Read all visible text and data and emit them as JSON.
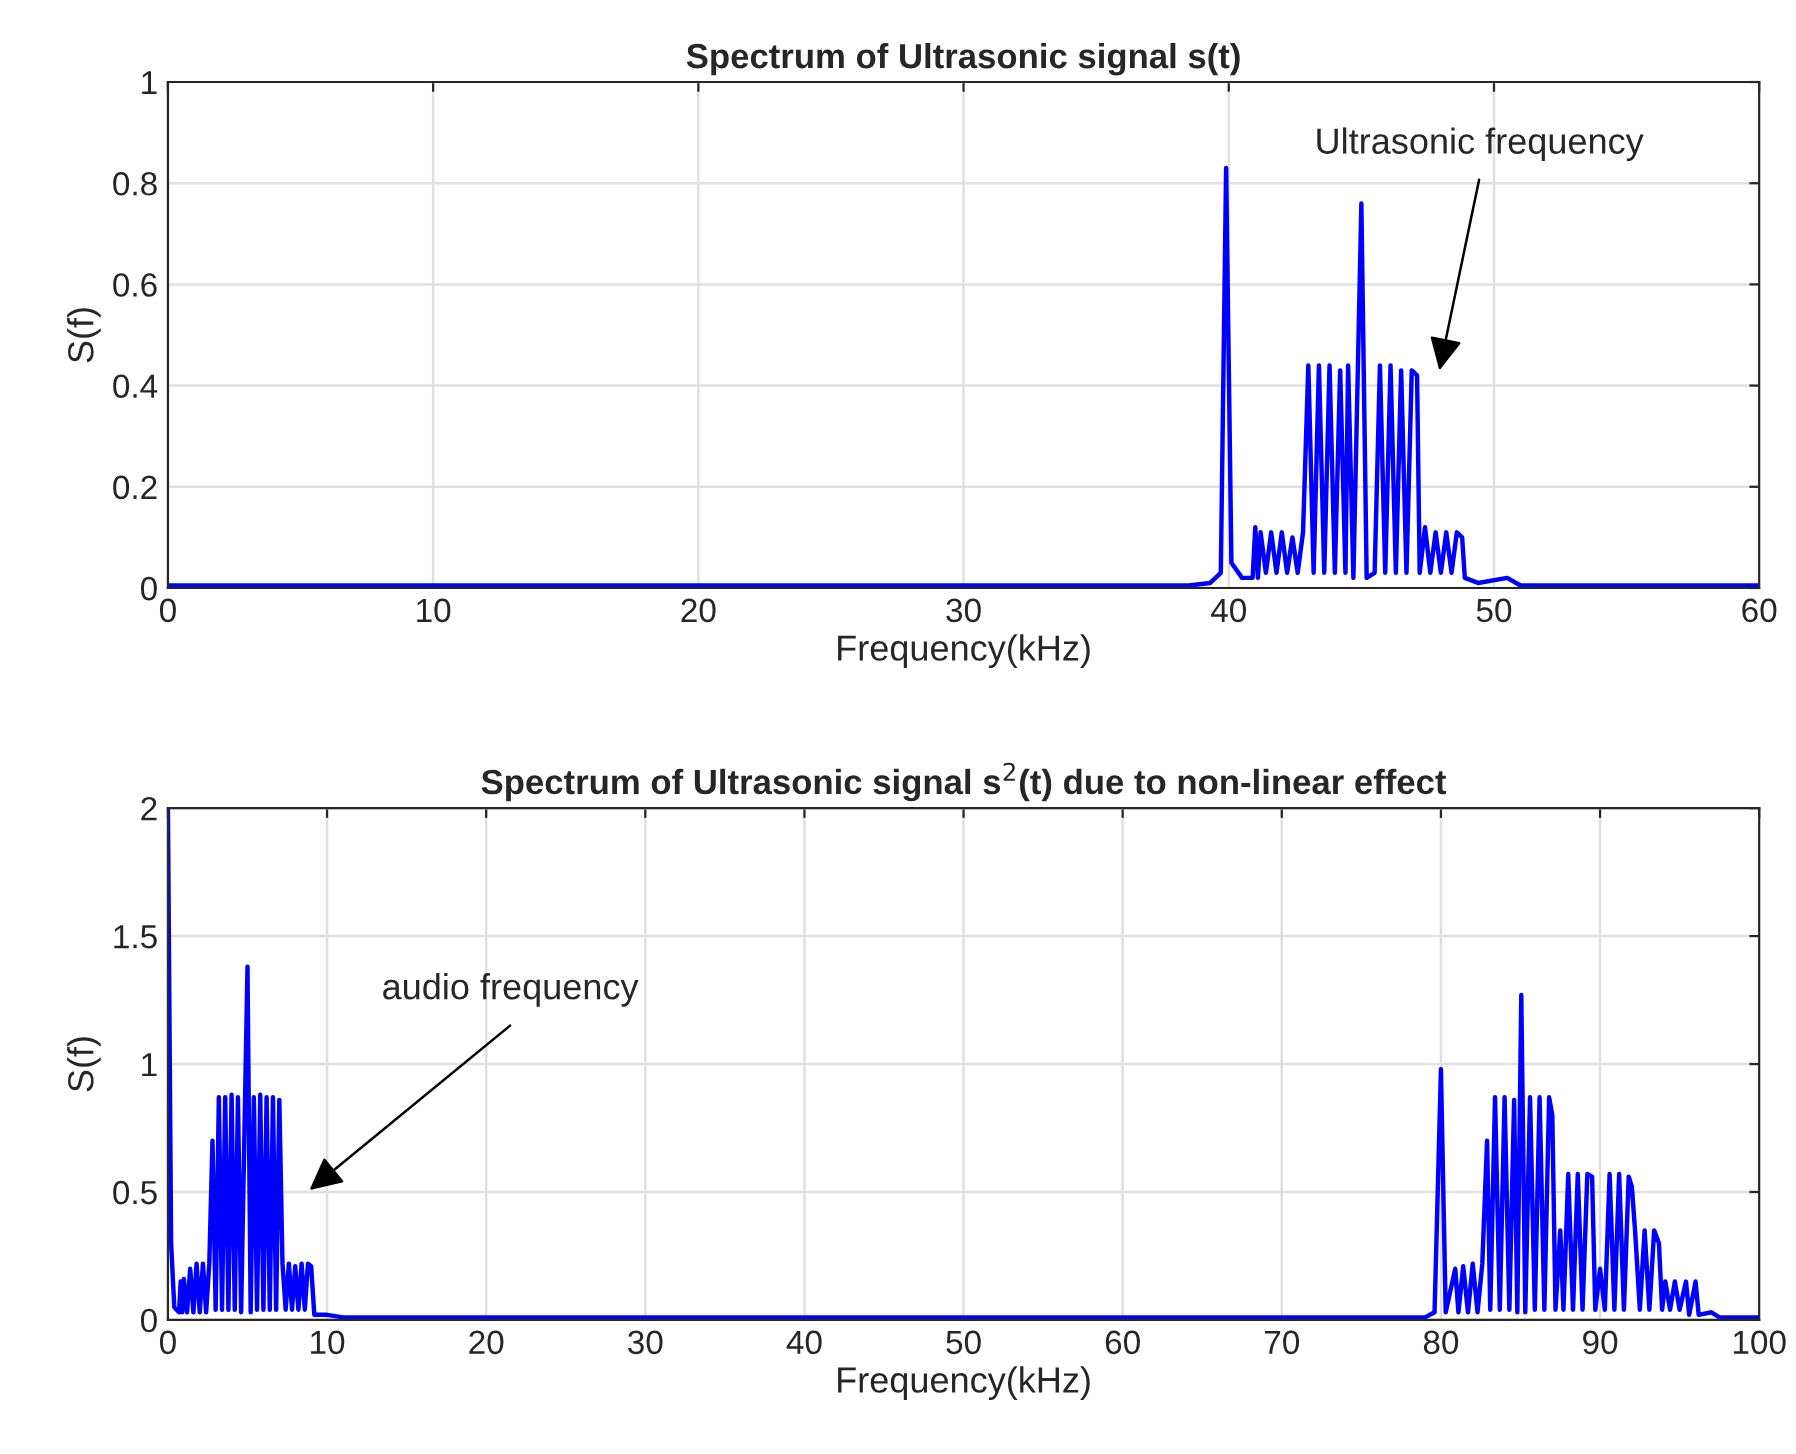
{
  "chart_data": [
    {
      "type": "line",
      "title": "Spectrum of Ultrasonic signal s(t)",
      "xlabel": "Frequency(kHz)",
      "ylabel": "S(f)",
      "xlim": [
        0,
        60
      ],
      "xticks": [
        0,
        10,
        20,
        30,
        40,
        50,
        60
      ],
      "ylim": [
        0,
        1
      ],
      "yticks": [
        0,
        0.2,
        0.4,
        0.6,
        0.8,
        1
      ],
      "grid": true,
      "annotations": [
        "Ultrasonic frequency"
      ],
      "series": [
        {
          "color": "#0000ff",
          "x": [
            0,
            38.5,
            39.3,
            39.7,
            39.9,
            40.1,
            40.5,
            40.9,
            41.0,
            41.1,
            41.2,
            41.4,
            41.6,
            41.8,
            42.0,
            42.2,
            42.4,
            42.6,
            42.8,
            43.0,
            43.2,
            43.4,
            43.6,
            43.8,
            44.0,
            44.2,
            44.4,
            44.5,
            44.7,
            45.0,
            45.2,
            45.5,
            45.7,
            45.9,
            46.1,
            46.3,
            46.5,
            46.7,
            46.9,
            47.1,
            47.2,
            47.4,
            47.6,
            47.8,
            48.0,
            48.2,
            48.4,
            48.6,
            48.8,
            48.9,
            49.4,
            50.5,
            51,
            60
          ],
          "values": [
            0.005,
            0.005,
            0.01,
            0.03,
            0.83,
            0.05,
            0.02,
            0.02,
            0.12,
            0.02,
            0.11,
            0.03,
            0.11,
            0.03,
            0.11,
            0.03,
            0.1,
            0.03,
            0.11,
            0.44,
            0.03,
            0.44,
            0.03,
            0.44,
            0.03,
            0.43,
            0.03,
            0.44,
            0.02,
            0.76,
            0.02,
            0.03,
            0.44,
            0.03,
            0.44,
            0.03,
            0.43,
            0.03,
            0.43,
            0.42,
            0.03,
            0.12,
            0.03,
            0.11,
            0.03,
            0.11,
            0.03,
            0.11,
            0.1,
            0.02,
            0.01,
            0.02,
            0.005,
            0.005
          ]
        }
      ]
    },
    {
      "type": "line",
      "title": "Spectrum of Ultrasonic signal s$^{2}$(t) due to non-linear effect",
      "xlabel": "Frequency(kHz)",
      "ylabel": "S(f)",
      "xlim": [
        0,
        100
      ],
      "xticks": [
        0,
        10,
        20,
        30,
        40,
        50,
        60,
        70,
        80,
        90,
        100
      ],
      "ylim": [
        0,
        2
      ],
      "yticks": [
        0,
        0.5,
        1,
        1.5,
        2
      ],
      "grid": true,
      "annotations": [
        "audio frequency"
      ],
      "series": [
        {
          "color": "#0000ff",
          "x": [
            0,
            0.2,
            0.4,
            0.7,
            0.8,
            0.9,
            1.0,
            1.2,
            1.4,
            1.6,
            1.8,
            2.0,
            2.2,
            2.4,
            2.6,
            2.8,
            3.0,
            3.2,
            3.4,
            3.6,
            3.8,
            4.0,
            4.2,
            4.4,
            4.6,
            5.0,
            5.2,
            5.4,
            5.6,
            5.8,
            6.0,
            6.2,
            6.4,
            6.6,
            6.8,
            7.0,
            7.2,
            7.4,
            7.6,
            7.8,
            8.0,
            8.2,
            8.4,
            8.6,
            8.8,
            9.0,
            9.2,
            10.0,
            11,
            79,
            79.6,
            80.0,
            80.3,
            80.9,
            81.1,
            81.4,
            81.7,
            82.0,
            82.3,
            82.6,
            82.9,
            83.1,
            83.4,
            83.7,
            84.0,
            84.3,
            84.6,
            84.8,
            85.05,
            85.3,
            85.6,
            85.9,
            86.2,
            86.5,
            86.8,
            87.0,
            87.2,
            87.5,
            87.7,
            88.0,
            88.3,
            88.6,
            88.9,
            89.2,
            89.5,
            89.7,
            90.0,
            90.3,
            90.6,
            90.9,
            91.2,
            91.5,
            91.8,
            92.0,
            92.2,
            92.5,
            92.8,
            93.1,
            93.4,
            93.7,
            93.9,
            94.1,
            94.4,
            94.7,
            95.0,
            95.4,
            95.6,
            96.0,
            96.2,
            97.0,
            97.5,
            100
          ],
          "values": [
            2.0,
            0.3,
            0.05,
            0.03,
            0.15,
            0.03,
            0.16,
            0.03,
            0.2,
            0.03,
            0.22,
            0.03,
            0.22,
            0.03,
            0.22,
            0.7,
            0.04,
            0.87,
            0.04,
            0.87,
            0.04,
            0.88,
            0.04,
            0.87,
            0.03,
            1.38,
            0.03,
            0.87,
            0.04,
            0.88,
            0.04,
            0.87,
            0.04,
            0.87,
            0.04,
            0.86,
            0.22,
            0.04,
            0.22,
            0.04,
            0.21,
            0.04,
            0.22,
            0.04,
            0.22,
            0.21,
            0.02,
            0.02,
            0.01,
            0.01,
            0.03,
            0.98,
            0.03,
            0.2,
            0.03,
            0.21,
            0.03,
            0.22,
            0.03,
            0.22,
            0.7,
            0.04,
            0.87,
            0.04,
            0.87,
            0.04,
            0.86,
            0.03,
            1.27,
            0.03,
            0.87,
            0.04,
            0.87,
            0.04,
            0.87,
            0.8,
            0.04,
            0.35,
            0.04,
            0.57,
            0.04,
            0.57,
            0.04,
            0.57,
            0.56,
            0.04,
            0.2,
            0.04,
            0.57,
            0.04,
            0.57,
            0.04,
            0.56,
            0.52,
            0.35,
            0.04,
            0.35,
            0.04,
            0.35,
            0.3,
            0.04,
            0.15,
            0.04,
            0.15,
            0.04,
            0.15,
            0.02,
            0.15,
            0.02,
            0.03,
            0.01,
            0.01
          ]
        }
      ]
    }
  ]
}
